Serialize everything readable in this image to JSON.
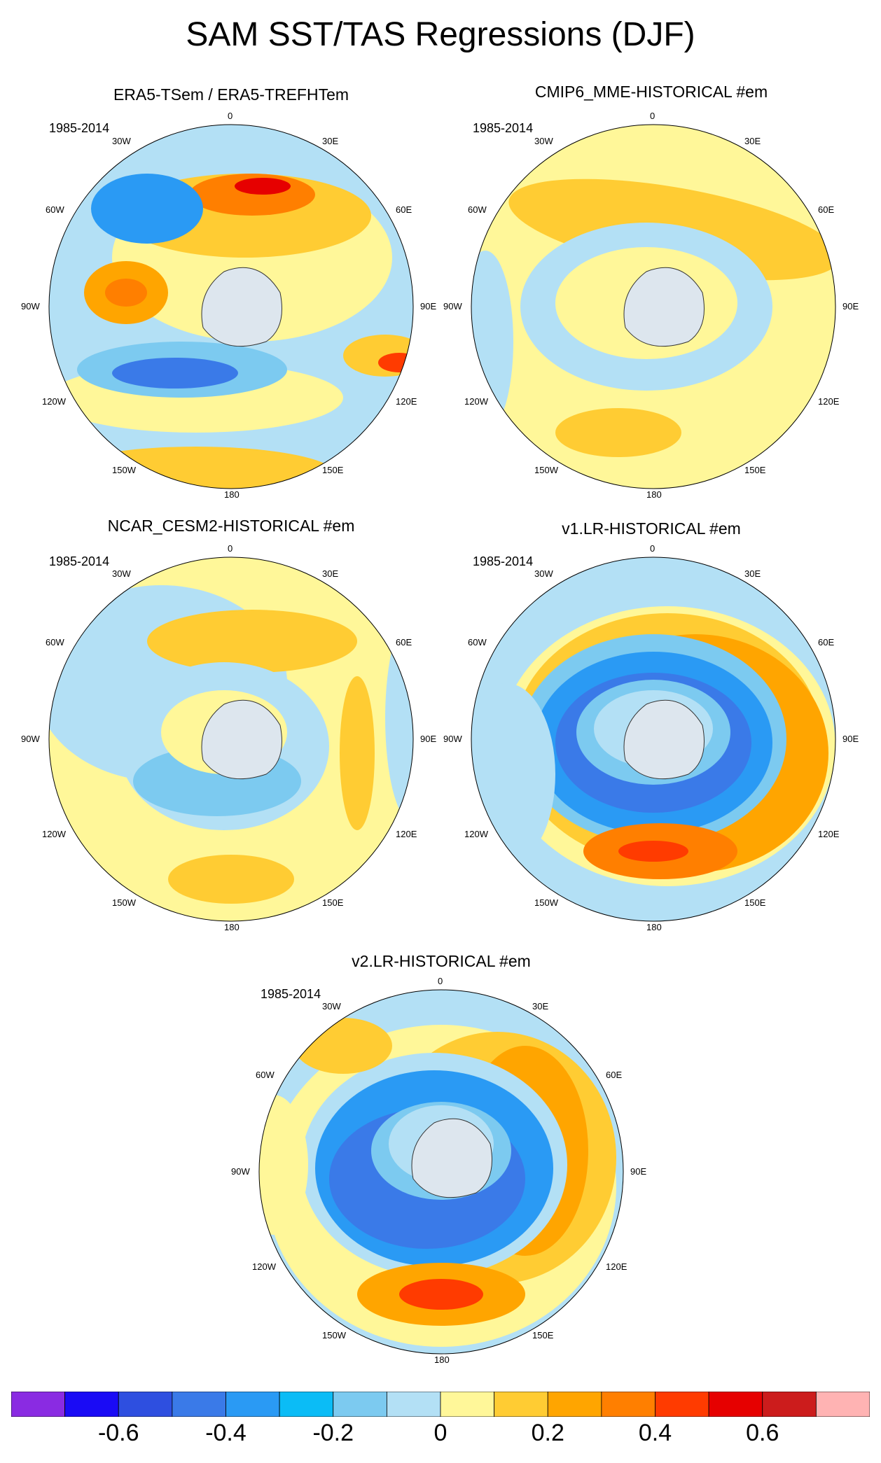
{
  "title": "SAM SST/TAS Regressions (DJF)",
  "panels": [
    {
      "title": "ERA5-TSem / ERA5-TREFHTem",
      "period": "1985-2014"
    },
    {
      "title": "CMIP6_MME-HISTORICAL  #em",
      "period": "1985-2014"
    },
    {
      "title": "NCAR_CESM2-HISTORICAL  #em",
      "period": "1985-2014"
    },
    {
      "title": "v1.LR-HISTORICAL  #em",
      "period": "1985-2014"
    },
    {
      "title": "v2.LR-HISTORICAL  #em",
      "period": "1985-2014"
    }
  ],
  "lon_labels": [
    "0",
    "30E",
    "60E",
    "90E",
    "120E",
    "150E",
    "180",
    "150W",
    "120W",
    "90W",
    "60W",
    "30W"
  ],
  "chart_data": {
    "type": "heatmap",
    "projection": "south-polar-stereographic",
    "colorbar": {
      "ticks": [
        "-0.6",
        "-0.4",
        "-0.2",
        "0",
        "0.2",
        "0.4",
        "0.6"
      ],
      "levels": [
        -0.7,
        -0.6,
        -0.5,
        -0.4,
        -0.3,
        -0.2,
        -0.1,
        0,
        0.1,
        0.2,
        0.3,
        0.4,
        0.5,
        0.6,
        0.7
      ],
      "colors": [
        "#8a2be2",
        "#1a0bf5",
        "#2e4fe0",
        "#3a7ae8",
        "#2a9af4",
        "#0bbcf6",
        "#7ccaf0",
        "#b3e0f5",
        "#fff799",
        "#ffcc33",
        "#ffa500",
        "#ff7f00",
        "#ff3b00",
        "#e60000",
        "#cc1c1c",
        "#ffb3b3"
      ]
    }
  }
}
